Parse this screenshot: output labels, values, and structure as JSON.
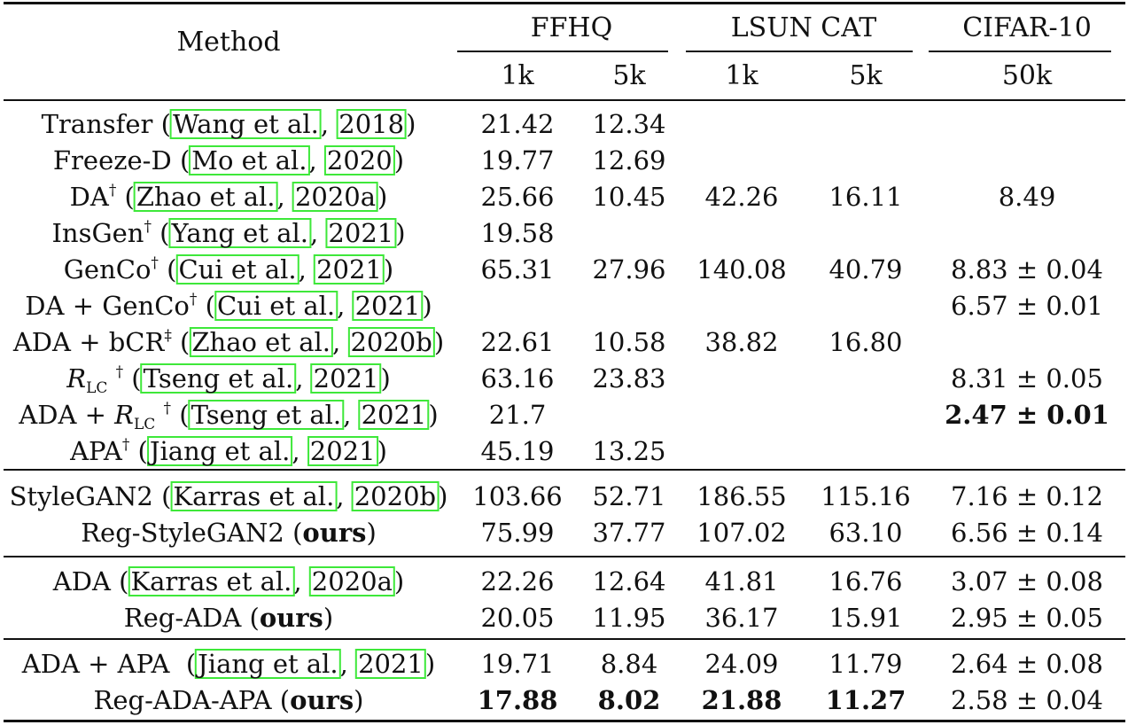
{
  "header": {
    "method": "Method",
    "groups": [
      "FFHQ",
      "LSUN CAT",
      "CIFAR-10"
    ],
    "subcols": [
      "1k",
      "5k",
      "1k",
      "5k",
      "50k"
    ]
  },
  "sections": [
    [
      {
        "pre": "Transfer",
        "sup": "",
        "authors": "Wang et al.",
        "year": "2018",
        "vals": [
          "21.42",
          "12.34",
          "",
          "",
          ""
        ],
        "bold": []
      },
      {
        "pre": "Freeze-D",
        "sup": "",
        "authors": "Mo et al.",
        "year": "2020",
        "vals": [
          "19.77",
          "12.69",
          "",
          "",
          ""
        ],
        "bold": []
      },
      {
        "pre": "DA",
        "sup": "†",
        "authors": "Zhao et al.",
        "year": "2020a",
        "vals": [
          "25.66",
          "10.45",
          "42.26",
          "16.11",
          "8.49"
        ],
        "bold": []
      },
      {
        "pre": "InsGen",
        "sup": "†",
        "authors": "Yang et al.",
        "year": "2021",
        "vals": [
          "19.58",
          "",
          "",
          "",
          ""
        ],
        "bold": []
      },
      {
        "pre": "GenCo",
        "sup": "†",
        "authors": "Cui et al.",
        "year": "2021",
        "vals": [
          "65.31",
          "27.96",
          "140.08",
          "40.79",
          "8.83 ± 0.04"
        ],
        "bold": []
      },
      {
        "pre": "DA + GenCo",
        "sup": "†",
        "authors": "Cui et al.",
        "year": "2021",
        "vals": [
          "",
          "",
          "",
          "",
          "6.57 ± 0.01"
        ],
        "bold": []
      },
      {
        "pre": "ADA + bCR",
        "sup": "‡",
        "authors": "Zhao et al.",
        "year": "2020b",
        "vals": [
          "22.61",
          "10.58",
          "38.82",
          "16.80",
          ""
        ],
        "bold": []
      },
      {
        "pre": "",
        "math": "R",
        "msub": "LC",
        "sup": "†",
        "authors": "Tseng et al.",
        "year": "2021",
        "vals": [
          "63.16",
          "23.83",
          "",
          "",
          "8.31 ± 0.05"
        ],
        "bold": []
      },
      {
        "pre": "ADA + ",
        "math": "R",
        "msub": "LC",
        "sup": "†",
        "authors": "Tseng et al.",
        "year": "2021",
        "vals": [
          "21.7",
          "",
          "",
          "",
          "2.47 ± 0.01"
        ],
        "bold": [
          4
        ]
      },
      {
        "pre": "APA",
        "sup": "†",
        "authors": "Jiang et al.",
        "year": "2021",
        "vals": [
          "45.19",
          "13.25",
          "",
          "",
          ""
        ],
        "bold": []
      }
    ],
    [
      {
        "pre": "StyleGAN2",
        "sup": "",
        "authors": "Karras et al.",
        "year": "2020b",
        "vals": [
          "103.66",
          "52.71",
          "186.55",
          "115.16",
          "7.16 ± 0.12"
        ],
        "bold": []
      },
      {
        "pre": "Reg-StyleGAN2",
        "sup": "",
        "ours": "ours",
        "vals": [
          "75.99",
          "37.77",
          "107.02",
          "63.10",
          "6.56 ± 0.14"
        ],
        "bold": []
      }
    ],
    [
      {
        "pre": "ADA",
        "sup": "",
        "authors": "Karras et al.",
        "year": "2020a",
        "vals": [
          "22.26",
          "12.64",
          "41.81",
          "16.76",
          "3.07 ± 0.08"
        ],
        "bold": []
      },
      {
        "pre": "Reg-ADA",
        "sup": "",
        "ours": "ours",
        "vals": [
          "20.05",
          "11.95",
          "36.17",
          "15.91",
          "2.95 ± 0.05"
        ],
        "bold": []
      }
    ],
    [
      {
        "pre": "ADA + APA ",
        "sup": "",
        "authors": "Jiang et al.",
        "year": "2021",
        "vals": [
          "19.71",
          "8.84",
          "24.09",
          "11.79",
          "2.64 ± 0.08"
        ],
        "bold": []
      },
      {
        "pre": "Reg-ADA-APA",
        "sup": "",
        "ours": "ours",
        "vals": [
          "17.88",
          "8.02",
          "21.88",
          "11.27",
          "2.58 ± 0.04"
        ],
        "bold": [
          0,
          1,
          2,
          3
        ]
      }
    ]
  ]
}
